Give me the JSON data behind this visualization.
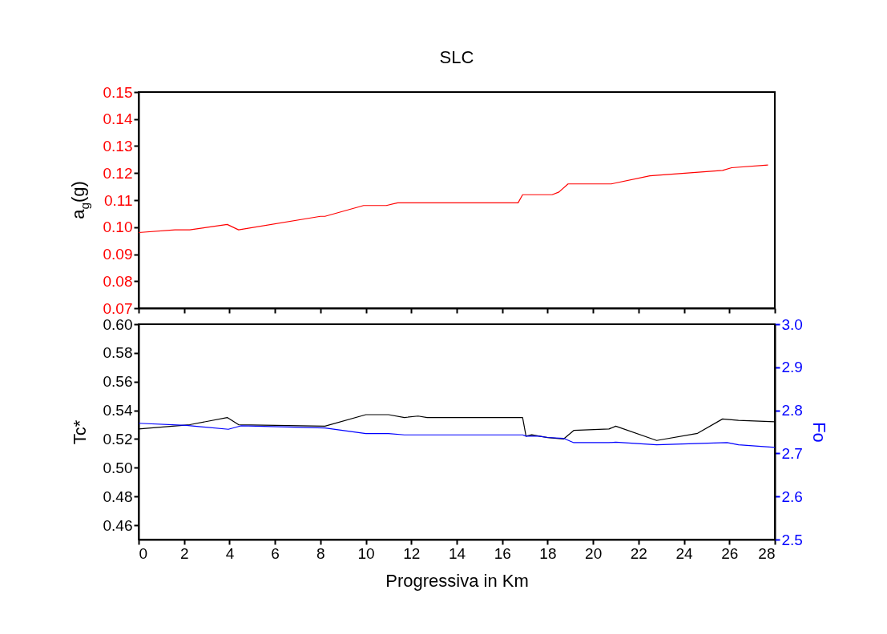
{
  "chart_data": [
    {
      "type": "line",
      "title": "SLC",
      "ylabel": "a$_{g}$(g)",
      "xlim": [
        0,
        28
      ],
      "xticks": [
        0,
        2,
        4,
        6,
        8,
        10,
        12,
        14,
        16,
        18,
        20,
        22,
        24,
        26,
        28
      ],
      "ylim": [
        0.07,
        0.15
      ],
      "yticks": [
        0.07,
        0.08,
        0.09,
        {
          "value": 0.1,
          "label": "0.10"
        },
        0.11,
        0.12,
        0.13,
        0.14,
        0.15
      ],
      "tick_labels": "y",
      "grid": false,
      "x": [
        0,
        1.6,
        2.25,
        3.9,
        4.4,
        8.0,
        8.2,
        9.9,
        10.9,
        11.4,
        16.7,
        16.9,
        18.2,
        18.5,
        18.9,
        20.8,
        22.5,
        25.7,
        26.1,
        27.7
      ],
      "series": [
        {
          "color": "#ff0000",
          "values": [
            0.098,
            0.099,
            0.099,
            0.101,
            0.099,
            0.104,
            0.104,
            0.108,
            0.108,
            0.109,
            0.109,
            0.112,
            0.112,
            0.113,
            0.116,
            0.116,
            0.119,
            0.121,
            0.122,
            0.123
          ]
        }
      ]
    },
    {
      "type": "line",
      "xlabel": "Progressiva in Km",
      "ylabel": "Tc*",
      "y2label": "Fo",
      "xlim": [
        0,
        28
      ],
      "xticks": [
        0,
        2,
        4,
        6,
        8,
        10,
        12,
        14,
        16,
        18,
        20,
        22,
        24,
        26,
        28
      ],
      "ylim": [
        0.45,
        0.6
      ],
      "yticks": [
        0.46,
        0.48,
        {
          "value": 0.5,
          "label": "0.50"
        },
        0.52,
        0.54,
        0.56,
        0.58,
        {
          "value": 0.6,
          "label": "0.60"
        }
      ],
      "y2lim": [
        2.5,
        3.0
      ],
      "y2ticks": [
        2.5,
        2.6,
        2.7,
        2.8,
        2.9,
        {
          "value": 3.0,
          "label": "3.0"
        }
      ],
      "grid": false,
      "series": [
        {
          "color": "#000000",
          "x": [
            0,
            2.25,
            3.9,
            4.4,
            8.2,
            10.0,
            11.0,
            11.7,
            12.3,
            12.7,
            16.9,
            17.05,
            17.3,
            18.0,
            18.7,
            19.15,
            20.7,
            21.0,
            22.8,
            24.6,
            25.7,
            26.4,
            28.0
          ],
          "values": [
            0.527,
            0.53,
            0.535,
            0.53,
            0.529,
            0.537,
            0.537,
            0.535,
            0.536,
            0.535,
            0.535,
            0.522,
            0.523,
            0.521,
            0.52,
            0.526,
            0.527,
            0.529,
            0.519,
            0.524,
            0.534,
            0.533,
            0.532
          ]
        },
        {
          "color": "#0000ff",
          "axis": "y2",
          "x": [
            0,
            2.1,
            3.95,
            4.5,
            8.2,
            10.0,
            11.0,
            11.7,
            16.9,
            17.05,
            17.6,
            18.0,
            18.7,
            19.15,
            20.7,
            21.0,
            22.8,
            25.9,
            26.4,
            28.0
          ],
          "values": [
            2.77,
            2.765,
            2.756,
            2.764,
            2.759,
            2.746,
            2.746,
            2.743,
            2.743,
            2.74,
            2.74,
            2.737,
            2.735,
            2.725,
            2.725,
            2.726,
            2.72,
            2.725,
            2.72,
            2.714
          ]
        }
      ]
    }
  ]
}
